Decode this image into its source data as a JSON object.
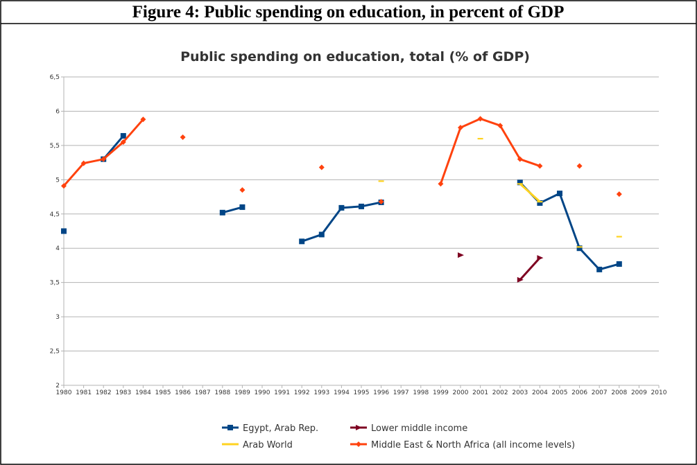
{
  "figure_title": "Figure 4: Public spending on education, in percent of GDP",
  "chart_data": {
    "type": "line",
    "title": "Public spending on education, total (% of GDP)",
    "x": [
      1980,
      1981,
      1982,
      1983,
      1984,
      1985,
      1986,
      1987,
      1988,
      1989,
      1990,
      1991,
      1992,
      1993,
      1994,
      1995,
      1996,
      1997,
      1998,
      1999,
      2000,
      2001,
      2002,
      2003,
      2004,
      2005,
      2006,
      2007,
      2008
    ],
    "series": [
      {
        "name": "Egypt, Arab Rep.",
        "color": "#004586",
        "marker": "square",
        "values": [
          4.25,
          null,
          5.3,
          5.64,
          null,
          null,
          null,
          null,
          4.52,
          4.6,
          null,
          null,
          4.1,
          4.2,
          4.59,
          4.61,
          4.67,
          null,
          null,
          null,
          null,
          null,
          null,
          4.96,
          4.66,
          4.8,
          4.0,
          3.69,
          3.77
        ]
      },
      {
        "name": "Lower middle income",
        "color": "#7e0021",
        "marker": "triangle",
        "values": [
          null,
          null,
          null,
          null,
          null,
          null,
          null,
          null,
          null,
          null,
          null,
          null,
          null,
          null,
          null,
          null,
          null,
          null,
          null,
          null,
          3.9,
          null,
          null,
          3.54,
          3.86,
          null,
          null,
          null,
          null
        ]
      },
      {
        "name": "Arab World",
        "color": "#ffd320",
        "marker": "dash",
        "values": [
          null,
          null,
          null,
          null,
          null,
          null,
          null,
          null,
          null,
          null,
          null,
          null,
          null,
          null,
          null,
          null,
          4.98,
          null,
          null,
          null,
          null,
          5.6,
          null,
          4.94,
          4.68,
          null,
          4.02,
          null,
          4.17
        ]
      },
      {
        "name": "Middle East & North Africa (all income levels)",
        "color": "#ff420e",
        "marker": "diamond",
        "values": [
          4.91,
          5.24,
          5.3,
          5.55,
          5.88,
          null,
          5.62,
          null,
          null,
          4.85,
          null,
          null,
          null,
          5.18,
          null,
          null,
          4.68,
          null,
          null,
          4.94,
          5.76,
          5.89,
          5.79,
          5.3,
          5.2,
          null,
          5.2,
          null,
          4.79
        ]
      }
    ],
    "xlim": [
      1980,
      2010
    ],
    "xticks": [
      1980,
      1981,
      1982,
      1983,
      1984,
      1985,
      1986,
      1987,
      1988,
      1989,
      1990,
      1991,
      1992,
      1993,
      1994,
      1995,
      1996,
      1997,
      1998,
      1999,
      2000,
      2001,
      2002,
      2003,
      2004,
      2005,
      2006,
      2007,
      2008,
      2009,
      2010
    ],
    "ylim": [
      2,
      6.5
    ],
    "yticks": [
      {
        "value": 2,
        "label": "2"
      },
      {
        "value": 2.5,
        "label": "2,5"
      },
      {
        "value": 3,
        "label": "3"
      },
      {
        "value": 3.5,
        "label": "3,5"
      },
      {
        "value": 4,
        "label": "4"
      },
      {
        "value": 4.5,
        "label": "4,5"
      },
      {
        "value": 5,
        "label": "5"
      },
      {
        "value": 5.5,
        "label": "5,5"
      },
      {
        "value": 6,
        "label": "6"
      },
      {
        "value": 6.5,
        "label": "6,5"
      }
    ],
    "grid": true,
    "legend": "bottom"
  }
}
